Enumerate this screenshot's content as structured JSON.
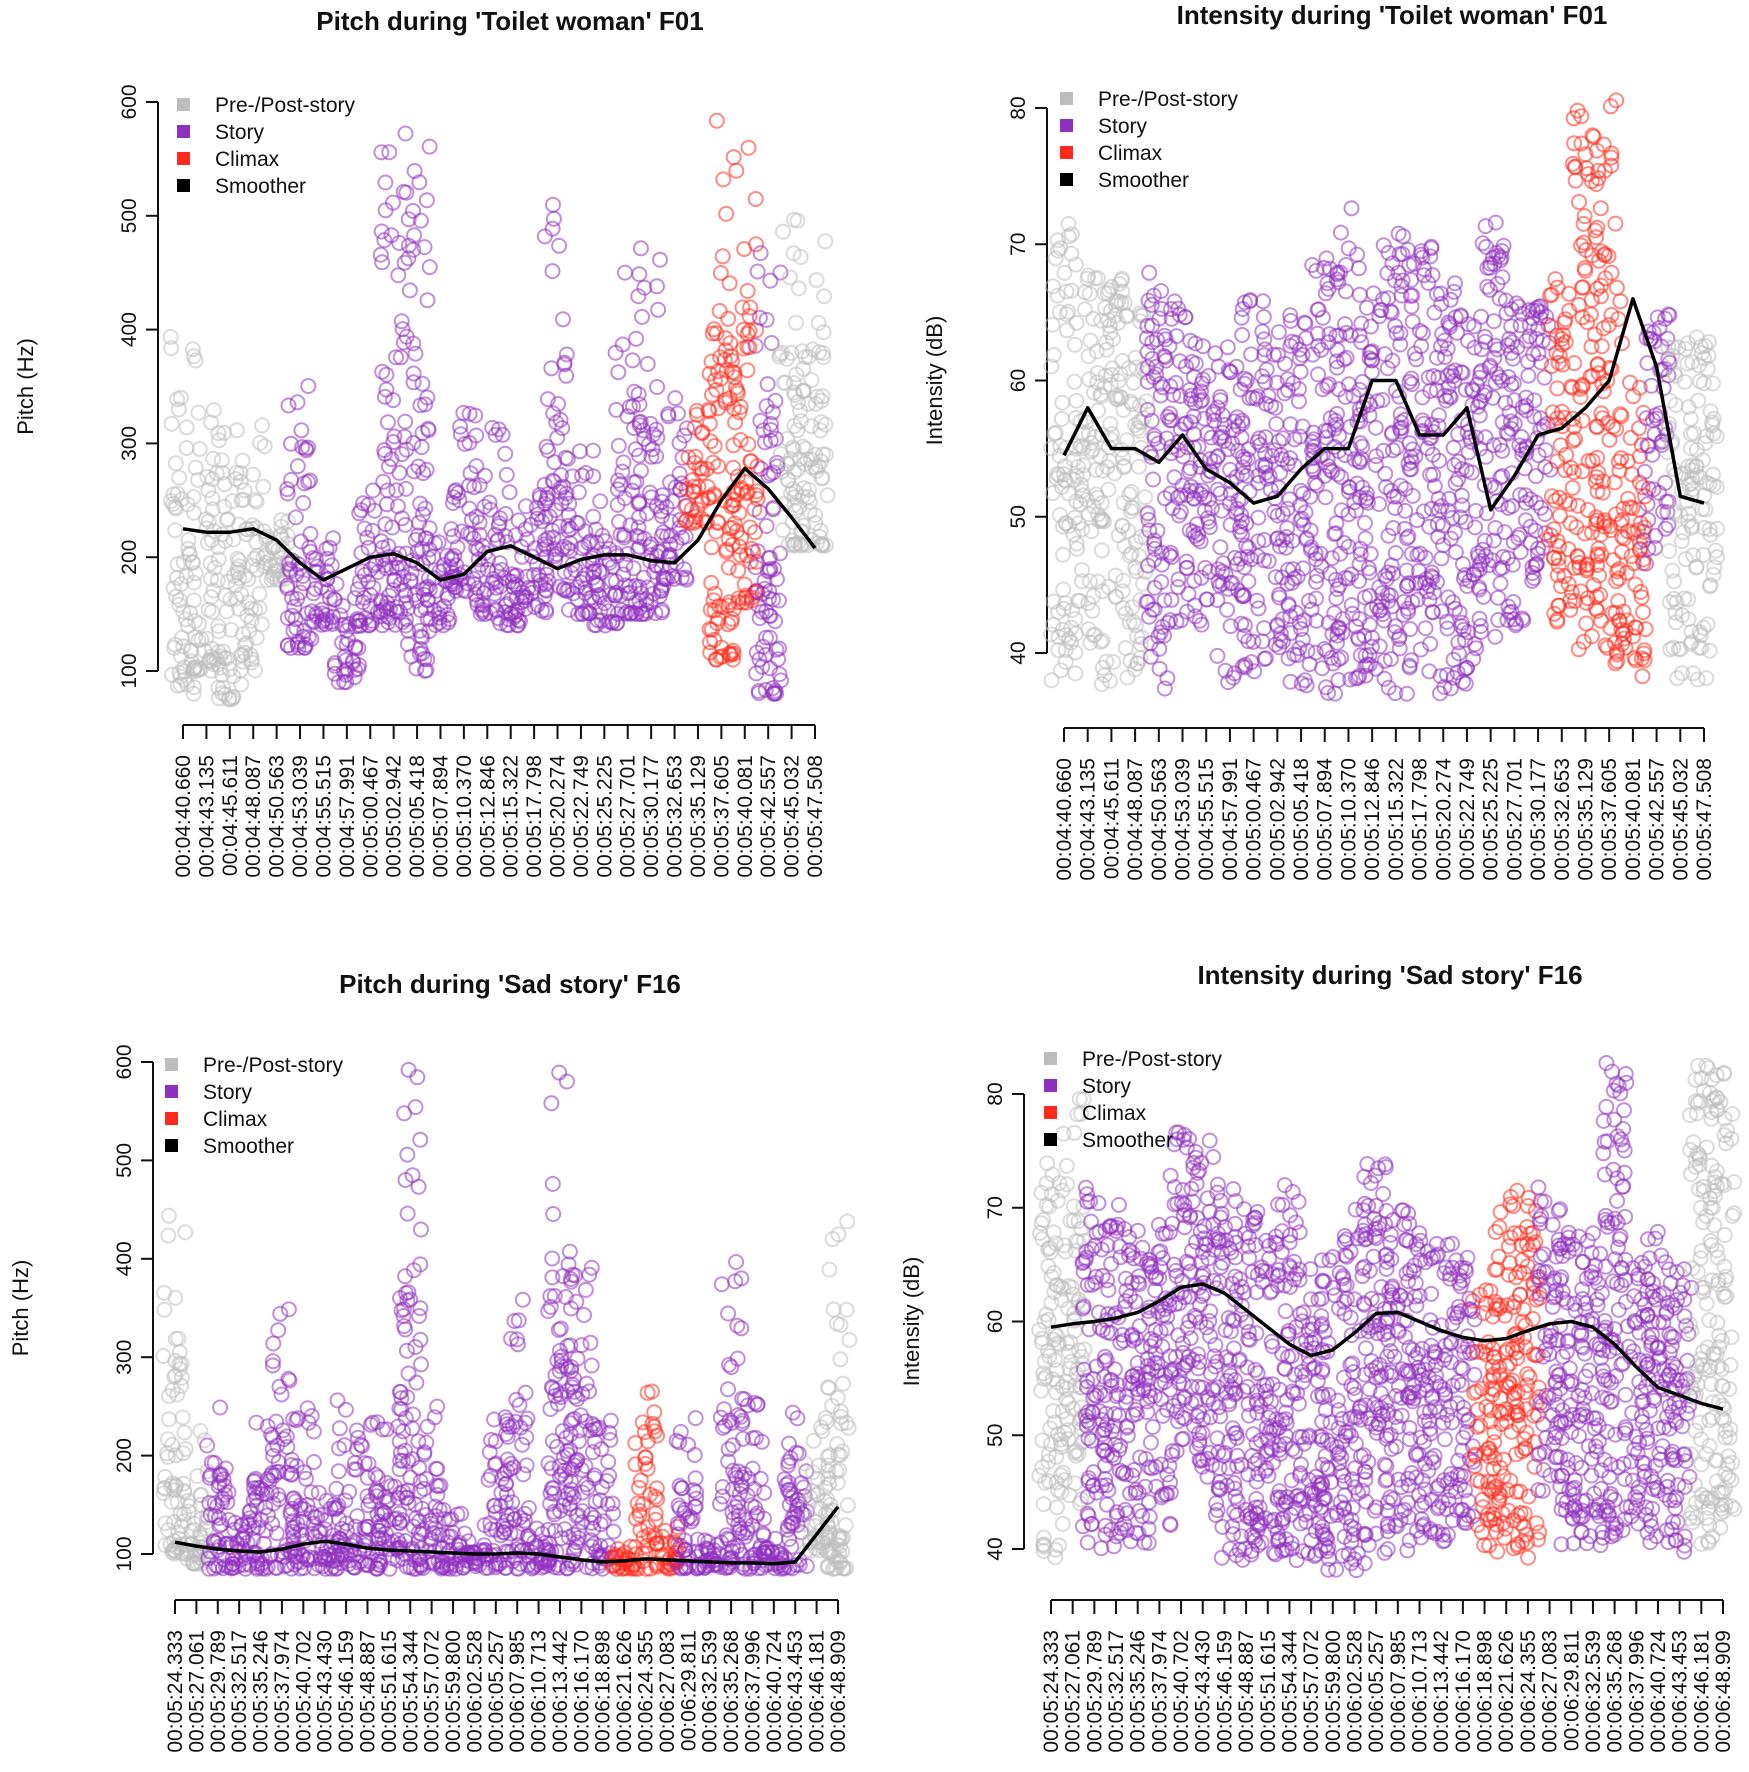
{
  "colors": {
    "pre_post": "#bdbdbd",
    "story": "#9030c0",
    "climax": "#ff2a1a",
    "smoother": "#000000"
  },
  "chart_data": [
    {
      "type": "scatter",
      "title": "Pitch during 'Toilet woman' F01",
      "ylabel": "Pitch (Hz)",
      "xlabel": "",
      "ylim": [
        100,
        600
      ],
      "yticks": [
        "100",
        "200",
        "300",
        "400",
        "500",
        "600"
      ],
      "legend": [
        "Pre-/Post-story",
        "Story",
        "Climax",
        "Smoother"
      ],
      "legend_position": "top-left",
      "xticks": [
        "00:04:40.660",
        "00:04:43.135",
        "00:04:45.611",
        "00:04:48.087",
        "00:04:50.563",
        "00:04:53.039",
        "00:04:55.515",
        "00:04:57.991",
        "00:05:00.467",
        "00:05:02.942",
        "00:05:05.418",
        "00:05:07.894",
        "00:05:10.370",
        "00:05:12.846",
        "00:05:15.322",
        "00:05:17.798",
        "00:05:20.274",
        "00:05:22.749",
        "00:05:25.225",
        "00:05:27.701",
        "00:05:30.177",
        "00:05:32.653",
        "00:05:35.129",
        "00:05:37.605",
        "00:05:40.081",
        "00:05:42.557",
        "00:05:45.032",
        "00:05:47.508"
      ],
      "point_bands": [
        [
          "pre",
          80,
          420
        ],
        [
          "pre",
          100,
          340
        ],
        [
          "pre",
          75,
          320
        ],
        [
          "pre",
          100,
          320
        ],
        [
          "pre",
          180,
          250
        ],
        [
          "story",
          120,
          380
        ],
        [
          "story",
          140,
          220
        ],
        [
          "story",
          90,
          190
        ],
        [
          "story",
          140,
          260
        ],
        [
          "story",
          140,
          590
        ],
        [
          "story",
          100,
          570
        ],
        [
          "story",
          140,
          230
        ],
        [
          "story",
          170,
          340
        ],
        [
          "story",
          150,
          330
        ],
        [
          "story",
          140,
          310
        ],
        [
          "story",
          150,
          260
        ],
        [
          "story",
          170,
          510
        ],
        [
          "story",
          150,
          300
        ],
        [
          "story",
          140,
          270
        ],
        [
          "story",
          150,
          460
        ],
        [
          "story",
          150,
          500
        ],
        [
          "story",
          180,
          340
        ],
        [
          "climax",
          230,
          330
        ],
        [
          "climax",
          110,
          600
        ],
        [
          "climax",
          160,
          560
        ],
        [
          "story",
          80,
          510
        ],
        [
          "pre",
          210,
          500
        ],
        [
          "pre",
          210,
          490
        ]
      ],
      "smoother": [
        225,
        222,
        222,
        225,
        215,
        195,
        180,
        190,
        200,
        203,
        195,
        180,
        185,
        205,
        210,
        200,
        190,
        198,
        202,
        202,
        197,
        195,
        215,
        250,
        278,
        260,
        235,
        208
      ]
    },
    {
      "type": "scatter",
      "title": "Intensity during 'Toilet woman' F01",
      "ylabel": "Intensity (dB)",
      "xlabel": "",
      "ylim": [
        40,
        80
      ],
      "yticks": [
        "40",
        "50",
        "60",
        "70",
        "80"
      ],
      "legend": [
        "Pre-/Post-story",
        "Story",
        "Climax",
        "Smoother"
      ],
      "legend_position": "top-left",
      "xticks": [
        "00:04:40.660",
        "00:04:43.135",
        "00:04:45.611",
        "00:04:48.087",
        "00:04:50.563",
        "00:04:53.039",
        "00:04:55.515",
        "00:04:57.991",
        "00:05:00.467",
        "00:05:02.942",
        "00:05:05.418",
        "00:05:07.894",
        "00:05:10.370",
        "00:05:12.846",
        "00:05:15.322",
        "00:05:17.798",
        "00:05:20.274",
        "00:05:22.749",
        "00:05:25.225",
        "00:05:27.701",
        "00:05:30.177",
        "00:05:32.653",
        "00:05:35.129",
        "00:05:37.605",
        "00:05:40.081",
        "00:05:42.557",
        "00:05:45.032",
        "00:05:47.508"
      ],
      "point_bands": [
        [
          "pre",
          38,
          72
        ],
        [
          "pre",
          40,
          68
        ],
        [
          "pre",
          37,
          68
        ],
        [
          "pre",
          38,
          66
        ],
        [
          "story",
          37,
          69
        ],
        [
          "story",
          42,
          66
        ],
        [
          "story",
          42,
          63
        ],
        [
          "story",
          37,
          63
        ],
        [
          "story",
          38,
          66
        ],
        [
          "story",
          40,
          64
        ],
        [
          "story",
          37,
          65
        ],
        [
          "story",
          37,
          69
        ],
        [
          "story",
          38,
          73
        ],
        [
          "story",
          38,
          68
        ],
        [
          "story",
          37,
          71
        ],
        [
          "story",
          38,
          70
        ],
        [
          "story",
          37,
          68
        ],
        [
          "story",
          37,
          65
        ],
        [
          "story",
          40,
          72
        ],
        [
          "story",
          42,
          67
        ],
        [
          "story",
          45,
          66
        ],
        [
          "climax",
          42,
          68
        ],
        [
          "climax",
          39,
          80
        ],
        [
          "climax",
          39,
          81
        ],
        [
          "climax",
          38,
          60
        ],
        [
          "story",
          46,
          65
        ],
        [
          "pre",
          38,
          63
        ],
        [
          "pre",
          38,
          64
        ]
      ],
      "smoother": [
        54.5,
        58,
        55,
        55,
        54,
        56,
        53.5,
        52.5,
        51,
        51.5,
        53.5,
        55,
        55,
        60,
        60,
        56,
        56,
        58,
        50.5,
        53,
        56,
        56.5,
        58,
        60,
        66,
        61,
        51.5,
        51
      ]
    },
    {
      "type": "scatter",
      "title": "Pitch during 'Sad story' F16",
      "ylabel": "Pitch (Hz)",
      "xlabel": "",
      "ylim": [
        100,
        600
      ],
      "yticks": [
        "100",
        "200",
        "300",
        "400",
        "500",
        "600"
      ],
      "legend": [
        "Pre-/Post-story",
        "Story",
        "Climax",
        "Smoother"
      ],
      "legend_position": "top-left",
      "xticks": [
        "00:05:24.333",
        "00:05:27.061",
        "00:05:29.789",
        "00:05:32.517",
        "00:05:35.246",
        "00:05:37.974",
        "00:05:40.702",
        "00:05:43.430",
        "00:05:46.159",
        "00:05:48.887",
        "00:05:51.615",
        "00:05:54.344",
        "00:05:57.072",
        "00:05:59.800",
        "00:06:02.528",
        "00:06:05.257",
        "00:06:07.985",
        "00:06:10.713",
        "00:06:13.442",
        "00:06:16.170",
        "00:06:18.898",
        "00:06:21.626",
        "00:06:24.355",
        "00:06:27.083",
        "00:06:29.811",
        "00:06:32.539",
        "00:06:35.268",
        "00:06:37.996",
        "00:06:40.724",
        "00:06:43.453",
        "00:06:46.181",
        "00:06:48.909"
      ],
      "point_bands": [
        [
          "pre",
          100,
          470
        ],
        [
          "pre",
          90,
          250
        ],
        [
          "story",
          85,
          250
        ],
        [
          "story",
          85,
          140
        ],
        [
          "story",
          85,
          240
        ],
        [
          "story",
          85,
          350
        ],
        [
          "story",
          85,
          250
        ],
        [
          "story",
          85,
          165
        ],
        [
          "story",
          85,
          260
        ],
        [
          "story",
          85,
          245
        ],
        [
          "story",
          85,
          230
        ],
        [
          "story",
          85,
          600
        ],
        [
          "story",
          85,
          250
        ],
        [
          "story",
          85,
          145
        ],
        [
          "story",
          85,
          120
        ],
        [
          "story",
          85,
          240
        ],
        [
          "story",
          85,
          360
        ],
        [
          "story",
          85,
          130
        ],
        [
          "story",
          85,
          590
        ],
        [
          "story",
          85,
          410
        ],
        [
          "story",
          85,
          250
        ],
        [
          "climax",
          85,
          110
        ],
        [
          "climax",
          85,
          280
        ],
        [
          "climax",
          85,
          130
        ],
        [
          "story",
          85,
          250
        ],
        [
          "story",
          85,
          120
        ],
        [
          "story",
          85,
          400
        ],
        [
          "story",
          85,
          260
        ],
        [
          "story",
          85,
          120
        ],
        [
          "story",
          85,
          270
        ],
        [
          "pre",
          100,
          250
        ],
        [
          "pre",
          85,
          440
        ]
      ],
      "smoother": [
        112,
        108,
        105,
        103,
        102,
        105,
        110,
        113,
        110,
        106,
        104,
        103,
        102,
        101,
        100,
        100,
        101,
        100,
        97,
        94,
        92,
        93,
        95,
        94,
        93,
        92,
        91,
        91,
        90,
        92,
        120,
        148
      ]
    },
    {
      "type": "scatter",
      "title": "Intensity during 'Sad story' F16",
      "ylabel": "Intensity (dB)",
      "xlabel": "",
      "ylim": [
        40,
        80
      ],
      "yticks": [
        "40",
        "50",
        "60",
        "70",
        "80"
      ],
      "legend": [
        "Pre-/Post-story",
        "Story",
        "Climax",
        "Smoother"
      ],
      "legend_position": "top-left",
      "xticks": [
        "00:05:24.333",
        "00:05:27.061",
        "00:05:29.789",
        "00:05:32.517",
        "00:05:35.246",
        "00:05:37.974",
        "00:05:40.702",
        "00:05:43.430",
        "00:05:46.159",
        "00:05:48.887",
        "00:05:51.615",
        "00:05:54.344",
        "00:05:57.072",
        "00:05:59.800",
        "00:06:02.528",
        "00:06:05.257",
        "00:06:07.985",
        "00:06:10.713",
        "00:06:13.442",
        "00:06:16.170",
        "00:06:18.898",
        "00:06:21.626",
        "00:06:24.355",
        "00:06:27.083",
        "00:06:29.811",
        "00:06:32.539",
        "00:06:35.268",
        "00:06:37.996",
        "00:06:40.724",
        "00:06:43.453",
        "00:06:46.181",
        "00:06:48.909"
      ],
      "point_bands": [
        [
          "pre",
          39,
          74
        ],
        [
          "pre",
          44,
          80
        ],
        [
          "story",
          40,
          72
        ],
        [
          "story",
          40,
          71
        ],
        [
          "story",
          40,
          68
        ],
        [
          "story",
          42,
          70
        ],
        [
          "story",
          48,
          77
        ],
        [
          "story",
          45,
          76
        ],
        [
          "story",
          39,
          73
        ],
        [
          "story",
          39,
          70
        ],
        [
          "story",
          39,
          68
        ],
        [
          "story",
          39,
          72
        ],
        [
          "story",
          39,
          67
        ],
        [
          "story",
          38,
          66
        ],
        [
          "story",
          38,
          70
        ],
        [
          "story",
          38,
          74
        ],
        [
          "story",
          39,
          70
        ],
        [
          "story",
          40,
          68
        ],
        [
          "story",
          40,
          67
        ],
        [
          "story",
          42,
          66
        ],
        [
          "climax",
          39,
          63
        ],
        [
          "climax",
          39,
          72
        ],
        [
          "climax",
          39,
          71
        ],
        [
          "story",
          45,
          72
        ],
        [
          "story",
          39,
          70
        ],
        [
          "story",
          40,
          68
        ],
        [
          "story",
          40,
          83
        ],
        [
          "story",
          42,
          66
        ],
        [
          "story",
          39,
          68
        ],
        [
          "story",
          39,
          65
        ],
        [
          "pre",
          40,
          83
        ],
        [
          "pre",
          41,
          82
        ]
      ],
      "smoother": [
        59.5,
        59.8,
        60,
        60.3,
        60.8,
        61.8,
        63,
        63.3,
        62.5,
        61,
        59.5,
        58,
        57,
        57.5,
        59,
        60.7,
        60.8,
        60,
        59.2,
        58.6,
        58.3,
        58.5,
        59.2,
        59.8,
        60,
        59.5,
        58,
        56,
        54.2,
        53.5,
        52.8,
        52.3
      ]
    }
  ]
}
